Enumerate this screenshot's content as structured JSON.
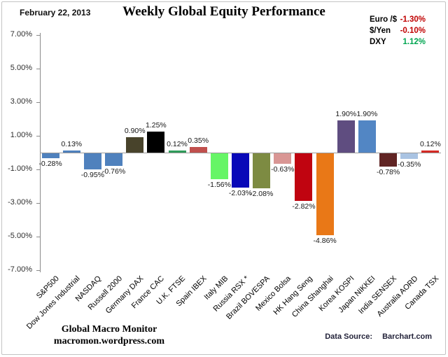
{
  "header": {
    "date": "February 22, 2013",
    "title": "Weekly Global Equity Performance"
  },
  "fx": [
    {
      "label": "Euro /$",
      "value": "-1.30%",
      "color": "#C00000"
    },
    {
      "label": "$/Yen",
      "value": "-0.10%",
      "color": "#C00000"
    },
    {
      "label": "DXY",
      "value": "1.12%",
      "color": "#00A550"
    }
  ],
  "chart_data": {
    "type": "bar",
    "title": "Weekly Global Equity Performance",
    "xlabel": "",
    "ylabel": "",
    "ylim": [
      -7,
      7
    ],
    "grid": false,
    "y_tick_values": [
      7,
      5,
      3,
      1,
      -1,
      -3,
      -5,
      -7
    ],
    "y_tick_labels": [
      "7.00%",
      "5.00%",
      "3.00%",
      "1.00%",
      "-1.00%",
      "-3.00%",
      "-5.00%",
      "-7.00%"
    ],
    "categories": [
      "S&P500",
      "Dow Jones Industrial",
      "NASDAQ",
      "Russell 2000",
      "Germany DAX",
      "France CAC",
      "U.K. FTSE",
      "Spain IBEX",
      "Italy MIB",
      "Russia RSX *",
      "Brazil BOVESPA",
      "Mexico Bolsa",
      "HK Hang Seng",
      "China Shanghai",
      "Korea KOSPI",
      "Japan NIKKEI",
      "India SENSEX",
      "Australia AORD",
      "Canada TSX"
    ],
    "values": [
      -0.28,
      0.13,
      -0.95,
      -0.76,
      0.9,
      1.25,
      0.12,
      0.35,
      -1.56,
      -2.03,
      -2.08,
      -0.63,
      -2.82,
      -4.86,
      1.9,
      1.9,
      -0.78,
      -0.35,
      0.12
    ],
    "data_labels": [
      "-0.28%",
      "0.13%",
      "-0.95%",
      "-0.76%",
      "0.90%",
      "1.25%",
      "0.12%",
      "0.35%",
      "-1.56%",
      "-2.03%",
      "-2.08%",
      "-0.63%",
      "-2.82%",
      "-4.86%",
      "1.90%",
      "1.90%",
      "-0.78%",
      "-0.35%",
      "0.12%"
    ],
    "bar_colors": [
      "#4F81BD",
      "#4F81BD",
      "#4F81BD",
      "#4F81BD",
      "#48432B",
      "#000000",
      "#2F9B5A",
      "#C0504D",
      "#66F566",
      "#0909B8",
      "#7D8B42",
      "#D99694",
      "#C00410",
      "#E97817",
      "#5F4D80",
      "#5286C4",
      "#602423",
      "#A9C3E2",
      "#D42A25"
    ],
    "legend_position": "none"
  },
  "footer": {
    "brand_line1": "Global Macro Monitor",
    "brand_line2": "macromon.wordpress.com",
    "source_label": "Data Source:",
    "source_value": "Barchart.com"
  }
}
